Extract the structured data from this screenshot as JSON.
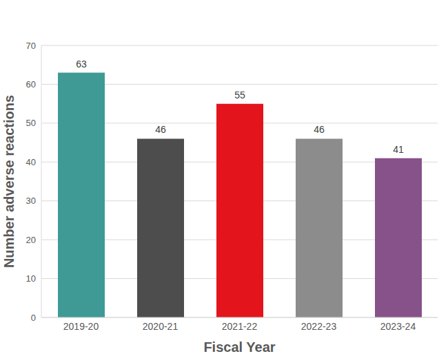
{
  "chart_data": {
    "type": "bar",
    "categories": [
      "2019-20",
      "2020-21",
      "2021-22",
      "2022-23",
      "2023-24"
    ],
    "values": [
      63,
      46,
      55,
      46,
      41
    ],
    "colors": [
      "#3f9a96",
      "#4d4d4d",
      "#e3141c",
      "#8c8c8c",
      "#87528a"
    ],
    "x_label": "Fiscal Year",
    "y_label": "Number adverse reactions",
    "ylim": [
      0,
      70
    ],
    "yticks": [
      0,
      10,
      20,
      30,
      40,
      50,
      60,
      70
    ],
    "grid": true,
    "data_labels": true
  }
}
